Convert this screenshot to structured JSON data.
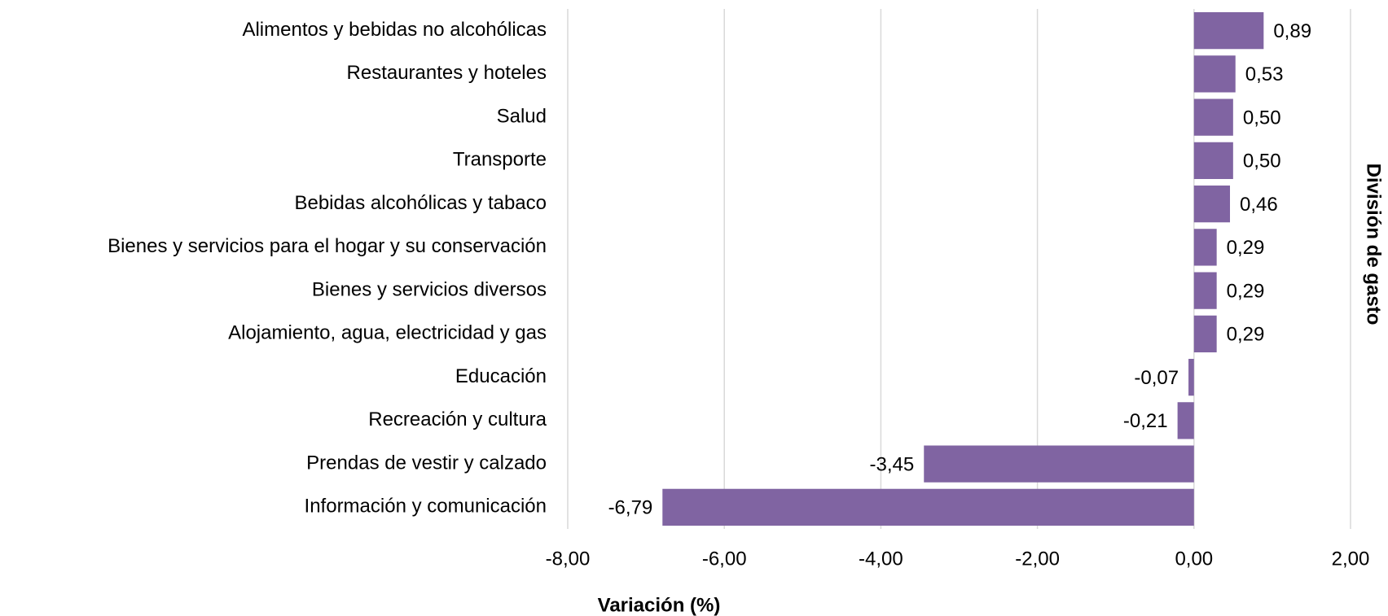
{
  "chart_data": {
    "type": "hbar",
    "xlabel": "Variación (%)",
    "ylabel": "División de gasto",
    "categories": [
      "Alimentos y bebidas no alcohólicas",
      "Restaurantes y hoteles",
      "Salud",
      "Transporte",
      "Bebidas alcohólicas y tabaco",
      "Bienes y servicios para el hogar y su conservación",
      "Bienes y servicios diversos",
      "Alojamiento, agua, electricidad y gas",
      "Educación",
      "Recreación y cultura",
      "Prendas de vestir y calzado",
      "Información y comunicación"
    ],
    "values": [
      0.89,
      0.53,
      0.5,
      0.5,
      0.46,
      0.29,
      0.29,
      0.29,
      -0.07,
      -0.21,
      -3.45,
      -6.79
    ],
    "value_labels": [
      "0,89",
      "0,53",
      "0,50",
      "0,50",
      "0,46",
      "0,29",
      "0,29",
      "0,29",
      "-0,07",
      "-0,21",
      "-3,45",
      "-6,79"
    ],
    "color": "#8064a2",
    "xlim": [
      -8,
      2
    ],
    "xticks": [
      {
        "value": -8,
        "label": "-8,00"
      },
      {
        "value": -6,
        "label": "-6,00"
      },
      {
        "value": -4,
        "label": "-4,00"
      },
      {
        "value": -2,
        "label": "-2,00"
      },
      {
        "value": 0,
        "label": "0,00"
      },
      {
        "value": 2,
        "label": "2,00"
      }
    ],
    "grid": true
  }
}
